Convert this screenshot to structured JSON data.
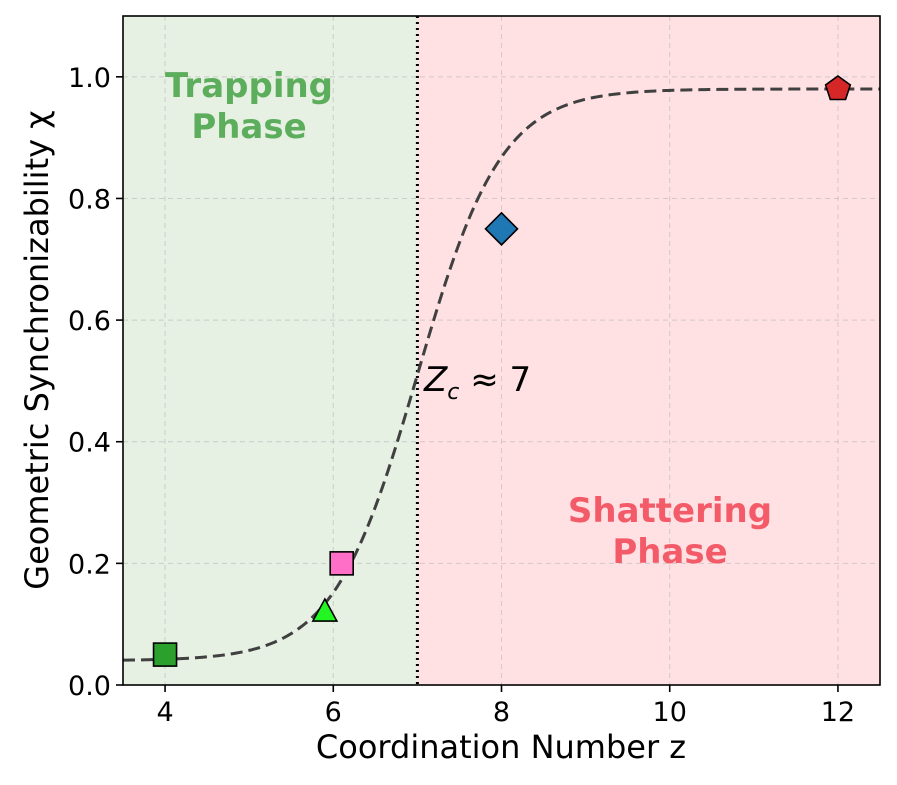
{
  "chart_data": {
    "type": "scatter",
    "title": "",
    "xlabel": "Coordination Number z",
    "ylabel": "Geometric Synchronizability χ",
    "xlim": [
      3.5,
      12.5
    ],
    "ylim": [
      0.0,
      1.1
    ],
    "xticks": [
      4,
      6,
      8,
      10,
      12
    ],
    "yticks": [
      0.0,
      0.2,
      0.4,
      0.6,
      0.8,
      1.0
    ],
    "xtick_labels": [
      "4",
      "6",
      "8",
      "10",
      "12"
    ],
    "ytick_labels": [
      "0.0",
      "0.2",
      "0.4",
      "0.6",
      "0.8",
      "1.0"
    ],
    "grid": true,
    "regions": [
      {
        "name": "trapping",
        "label_lines": [
          "Trapping",
          "Phase"
        ],
        "x_from": 3.5,
        "x_to": 7,
        "color": "#e6f0e3",
        "text_color": "#5cad5c"
      },
      {
        "name": "shattering",
        "label_lines": [
          "Shattering",
          "Phase"
        ],
        "x_from": 7,
        "x_to": 12.5,
        "color": "#ffe1e4",
        "text_color": "#f45b69"
      }
    ],
    "critical_line": {
      "x": 7,
      "label_main": "Z",
      "label_sub": "c",
      "label_rest": " ≈ 7"
    },
    "curve": {
      "style": "dashed",
      "color": "#404040",
      "min": 0.04,
      "max": 0.98,
      "center": 7,
      "steepness": 2.0
    },
    "points": [
      {
        "name": "z4",
        "x": 4.0,
        "y": 0.05,
        "marker": "square",
        "color": "#2ca02c"
      },
      {
        "name": "z5-9",
        "x": 5.9,
        "y": 0.12,
        "marker": "triangle",
        "color": "#22f522"
      },
      {
        "name": "z6-1",
        "x": 6.1,
        "y": 0.2,
        "marker": "square",
        "color": "#ff6ec7"
      },
      {
        "name": "z8",
        "x": 8.0,
        "y": 0.75,
        "marker": "diamond",
        "color": "#1f77b4"
      },
      {
        "name": "z12",
        "x": 12.0,
        "y": 0.98,
        "marker": "pentagon",
        "color": "#d62728"
      }
    ]
  }
}
